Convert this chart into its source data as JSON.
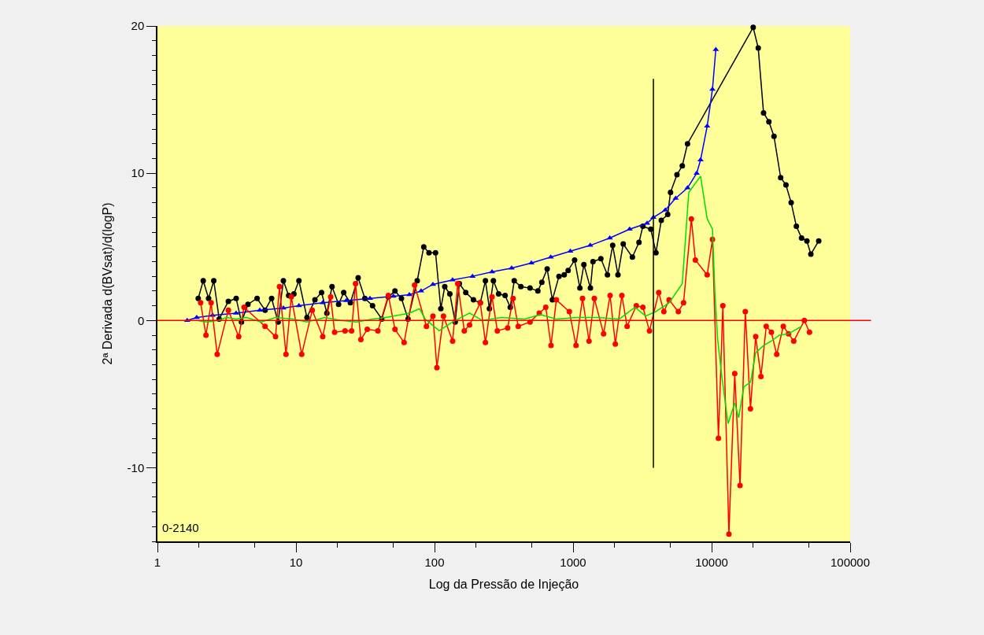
{
  "chart_data": {
    "type": "line",
    "xlabel": "Log da Pressão de Injeção",
    "ylabel": "2ª Derivada d(BVsat)/d(logP)",
    "annotations": [
      "0-2140"
    ],
    "log": "x",
    "xlim": [
      1,
      100000
    ],
    "xticks": [
      1,
      10,
      100,
      1000,
      10000,
      100000
    ],
    "ylim": [
      -15,
      20
    ],
    "yticks": [
      -10,
      0,
      10,
      20
    ],
    "grid": false,
    "ref_lines": [
      {
        "axis": "y",
        "value": 0,
        "color": "#ff0000"
      }
    ],
    "series": [
      {
        "color": "#000000",
        "marker": "circle",
        "x": [
          1.97,
          2.14,
          2.34,
          2.55,
          2.79,
          3.25,
          3.7,
          4.04,
          4.5,
          5.24,
          5.98,
          6.67,
          7.43,
          8.11,
          8.85,
          9.66,
          10.5,
          12.0,
          13.7,
          15.3,
          16.7,
          18.2,
          20.3,
          22.1,
          24.7,
          28.1,
          31.4,
          35.7,
          41.6,
          46.4,
          51.8,
          57.7,
          64.4,
          75.0,
          83.6,
          91.2,
          101.7,
          111,
          118.5,
          129,
          141,
          151,
          168,
          191,
          214,
          233,
          249,
          266,
          290,
          323,
          352,
          376,
          420,
          489,
          557,
          595,
          650,
          709,
          791,
          863,
          921,
          1026,
          1120,
          1197,
          1334,
          1392,
          1587,
          1770,
          1931,
          2108,
          2301,
          2680,
          2990,
          3190,
          3640,
          3965,
          4330,
          4820,
          5050,
          5620,
          6140,
          6700,
          19950,
          21700,
          23700,
          25900,
          28200,
          31500,
          34400,
          37500,
          40900,
          44600,
          48700,
          52000,
          59300
        ],
        "values": [
          1.5,
          2.7,
          1.5,
          2.7,
          0.1,
          1.3,
          1.5,
          -0.1,
          1.1,
          1.5,
          0.7,
          1.5,
          -0.1,
          2.7,
          1.7,
          1.8,
          2.7,
          0.2,
          1.4,
          1.9,
          0.5,
          2.3,
          1.1,
          1.9,
          1.2,
          2.9,
          1.5,
          1.0,
          0.1,
          1.6,
          2.0,
          1.5,
          0.1,
          2.7,
          5.0,
          4.6,
          4.6,
          0.8,
          2.3,
          1.8,
          -0.1,
          2.5,
          1.9,
          1.4,
          1.2,
          2.7,
          0.8,
          2.7,
          1.8,
          1.7,
          0.9,
          2.7,
          2.3,
          2.2,
          2.0,
          2.6,
          3.5,
          1.4,
          3.0,
          3.1,
          3.4,
          4.1,
          2.2,
          3.8,
          2.2,
          4.0,
          4.2,
          3.1,
          5.1,
          3.1,
          5.2,
          4.3,
          5.3,
          6.4,
          6.2,
          4.6,
          6.8,
          7.2,
          8.7,
          9.9,
          10.5,
          12.0,
          19.9,
          18.5,
          14.1,
          13.5,
          12.5,
          9.7,
          9.2,
          8.0,
          6.4,
          5.6,
          5.4,
          4.5,
          5.4
        ]
      },
      {
        "color": "#0000ff",
        "marker": "triangle",
        "x": [
          1.64,
          1.92,
          2.5,
          3.7,
          5.48,
          8.11,
          10.5,
          15.6,
          23.1,
          34.2,
          50.5,
          65.8,
          80.0,
          97.4,
          135,
          188,
          260,
          360,
          500,
          690,
          955,
          1330,
          1840,
          2560,
          3420,
          3800,
          4630,
          5500,
          6700,
          7800,
          8320,
          9290,
          10140,
          10720
        ],
        "values": [
          0,
          0.2,
          0.35,
          0.5,
          0.7,
          0.85,
          1.0,
          1.2,
          1.35,
          1.5,
          1.65,
          1.75,
          2.0,
          2.45,
          2.75,
          3.0,
          3.3,
          3.55,
          3.9,
          4.3,
          4.7,
          5.1,
          5.6,
          6.2,
          6.6,
          7.0,
          7.5,
          8.3,
          9.0,
          10.0,
          10.9,
          13.2,
          15.7,
          18.4
        ]
      },
      {
        "color": "#ff0000",
        "marker": "circle",
        "x": [
          2.05,
          2.24,
          2.44,
          2.7,
          3.25,
          3.86,
          4.22,
          5.98,
          7.12,
          7.6,
          8.47,
          9.25,
          11.0,
          13.1,
          15.6,
          17.8,
          19.0,
          22.6,
          25.2,
          26.9,
          29.4,
          32.7,
          39.0,
          46.4,
          51.8,
          60.3,
          71.8,
          87.4,
          97.4,
          104,
          116,
          135,
          147,
          164,
          179,
          214,
          233,
          260,
          284,
          337,
          369,
          402,
          489,
          570,
          635,
          693,
          757,
          940,
          1050,
          1170,
          1304,
          1423,
          1660,
          1850,
          2018,
          2250,
          2455,
          2860,
          3190,
          3560,
          4150,
          4520,
          4930,
          5750,
          6270,
          7140,
          7630,
          9290,
          10140,
          11200,
          12050,
          13330,
          14680,
          16030,
          17500,
          19070,
          20800,
          22700,
          24780,
          27000,
          29500,
          32900,
          35900,
          39150,
          46700,
          50850
        ],
        "values": [
          1.2,
          -1.0,
          1.2,
          -2.3,
          0.7,
          -1.1,
          0.9,
          -0.4,
          -1.1,
          2.3,
          -2.3,
          1.6,
          -2.3,
          0.7,
          -1.1,
          1.6,
          -0.8,
          -0.7,
          -0.7,
          2.5,
          -1.3,
          -0.6,
          -0.7,
          1.7,
          -0.6,
          -1.5,
          2.4,
          -0.4,
          0.3,
          -3.2,
          0.3,
          -1.4,
          2.5,
          -0.7,
          -0.3,
          1.2,
          -1.5,
          1.6,
          -0.7,
          -0.5,
          1.5,
          -0.4,
          -0.1,
          0.5,
          0.9,
          -1.7,
          1.4,
          0.6,
          -1.7,
          1.5,
          -1.4,
          1.5,
          -0.9,
          1.7,
          -1.6,
          1.7,
          -0.4,
          1.0,
          0.9,
          -0.7,
          1.9,
          0.6,
          1.4,
          0.6,
          1.2,
          6.9,
          4.1,
          3.1,
          5.5,
          -8.0,
          1.0,
          -14.5,
          -3.6,
          -11.2,
          0.6,
          -6.0,
          -1.1,
          -3.8,
          -0.4,
          -0.8,
          -2.3,
          -0.4,
          -0.9,
          -1.4,
          0.0,
          -0.8
        ]
      },
      {
        "color": "#00dd00",
        "marker": "none",
        "x": [
          1.92,
          2.28,
          2.73,
          3.16,
          3.7,
          4.39,
          5.6,
          7.12,
          9.61,
          12.0,
          16.2,
          21.1,
          27.4,
          35.6,
          44.4,
          65.8,
          78.0,
          85.5,
          108,
          135,
          179,
          222,
          303,
          448,
          582,
          757,
          1067,
          1520,
          2157,
          2800,
          3335,
          3950,
          4930,
          6140,
          6840,
          8320,
          9290,
          10140,
          10570,
          11060,
          11810,
          13150,
          14680,
          15670,
          17100,
          19070,
          20800,
          23700,
          27000,
          30800,
          35900,
          44600
        ],
        "values": [
          0,
          -0.1,
          0,
          0.2,
          0.1,
          0.2,
          -0.1,
          0.2,
          0.1,
          -0.1,
          0.2,
          0,
          -0.1,
          0.1,
          0.2,
          0.5,
          0.8,
          0.1,
          -0.7,
          -0.1,
          0.5,
          0,
          0.2,
          0.1,
          0.4,
          0.1,
          0.2,
          0.2,
          0.1,
          0.9,
          0.3,
          0.6,
          1.2,
          2.5,
          8.7,
          9.8,
          6.9,
          6.2,
          1.8,
          -1.3,
          -3.7,
          -7.0,
          -5.6,
          -6.6,
          -4.5,
          -4.2,
          -2.2,
          -1.7,
          -1.4,
          -1.0,
          -0.9,
          -0.4
        ]
      },
      {
        "color": "#000000",
        "marker": "none",
        "x": [
          3800,
          3800
        ],
        "values": [
          16.4,
          -10
        ]
      }
    ]
  }
}
